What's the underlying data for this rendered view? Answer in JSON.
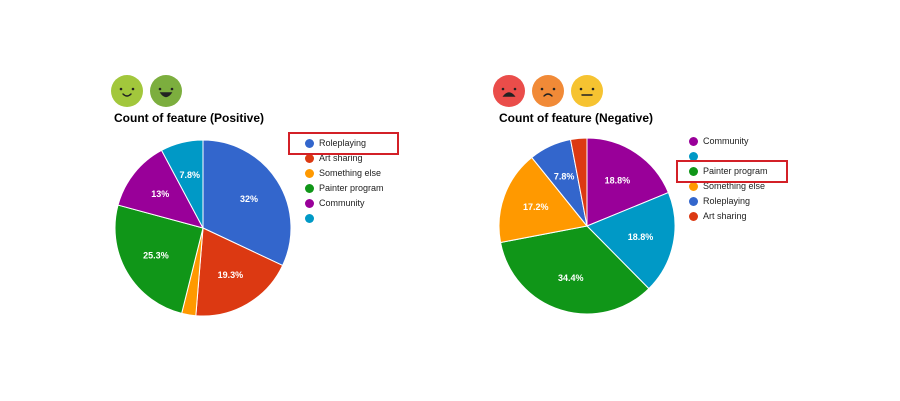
{
  "colors": {
    "blue": "#3366cc",
    "red": "#dc3912",
    "orange": "#ff9900",
    "green": "#109618",
    "purple": "#990099",
    "teal": "#0099c6",
    "highlight_box": "#d32027"
  },
  "positive": {
    "faces": [
      "slight-smile-face",
      "grin-face"
    ],
    "face_colors": [
      "#a2c73c",
      "#7cae3e"
    ]
  },
  "negative": {
    "faces": [
      "frown-face",
      "sad-face",
      "neutral-face"
    ],
    "face_colors": [
      "#ea4d4a",
      "#f18a37",
      "#f6c331"
    ]
  },
  "chart_data": [
    {
      "type": "pie",
      "title": "Count of feature (Positive)",
      "legend_position": "right",
      "highlighted_legend_entry": "Roleplaying",
      "slices": [
        {
          "label": "Roleplaying",
          "value": 32,
          "data_label": "32%",
          "color": "#3366cc"
        },
        {
          "label": "Art sharing",
          "value": 19.3,
          "data_label": "19.3%",
          "color": "#dc3912"
        },
        {
          "label": "Something else",
          "value": 2.6,
          "data_label": "",
          "color": "#ff9900"
        },
        {
          "label": "Painter program",
          "value": 25.3,
          "data_label": "25.3%",
          "color": "#109618"
        },
        {
          "label": "Community",
          "value": 13,
          "data_label": "13%",
          "color": "#990099"
        },
        {
          "label": "",
          "value": 7.8,
          "data_label": "7.8%",
          "color": "#0099c6"
        }
      ]
    },
    {
      "type": "pie",
      "title": "Count of feature (Negative)",
      "legend_position": "right",
      "highlighted_legend_entry": "Painter program",
      "slices": [
        {
          "label": "Community",
          "value": 18.8,
          "data_label": "18.8%",
          "color": "#990099"
        },
        {
          "label": "",
          "value": 18.8,
          "data_label": "18.8%",
          "color": "#0099c6"
        },
        {
          "label": "Painter program",
          "value": 34.4,
          "data_label": "34.4%",
          "color": "#109618"
        },
        {
          "label": "Something else",
          "value": 17.2,
          "data_label": "17.2%",
          "color": "#ff9900"
        },
        {
          "label": "Roleplaying",
          "value": 7.8,
          "data_label": "7.8%",
          "color": "#3366cc"
        },
        {
          "label": "Art sharing",
          "value": 3.0,
          "data_label": "",
          "color": "#dc3912"
        }
      ]
    }
  ]
}
